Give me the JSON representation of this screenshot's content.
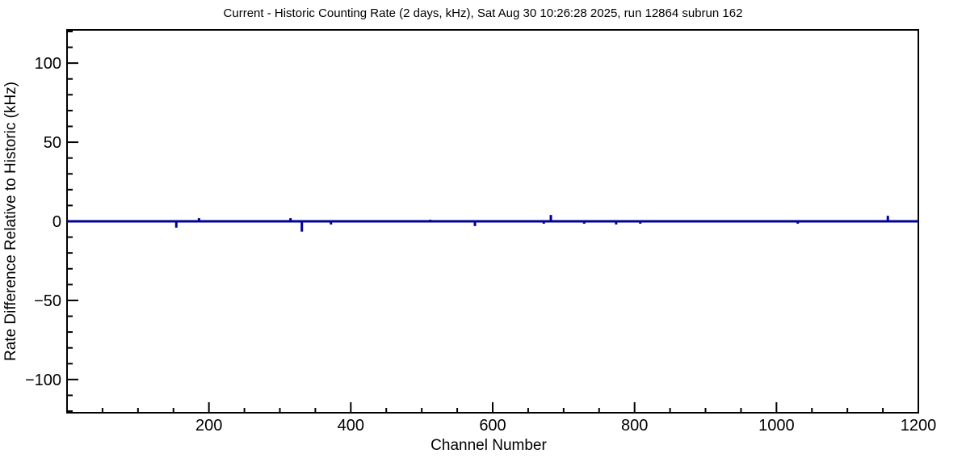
{
  "window": {
    "background_color": "#ffffff",
    "text_color": "#000000"
  },
  "chart_data": {
    "type": "line",
    "title": "Current - Historic Counting Rate (2 days, kHz), Sat Aug 30 10:26:28 2025, run 12864 subrun 162",
    "timestamp": "Sat Aug 30 10:26:28 2025",
    "run": "12864",
    "subrun": "162",
    "xlabel": "Channel Number",
    "ylabel": "Rate Difference Relative to Historic (kHz)",
    "xlim": [
      0,
      1200
    ],
    "ylim": [
      -121,
      121
    ],
    "grid": false,
    "legend_position": "none",
    "frame_color": "#000000",
    "line_color": "#000099",
    "x_major_step": 200,
    "x_minor_step": 50,
    "y_major_step": 50,
    "y_minor_step": 10,
    "x_major_ticks": [
      200,
      400,
      600,
      800,
      1000,
      1200
    ],
    "x_tick_labels": [
      "200",
      "400",
      "600",
      "800",
      "1000",
      "1200"
    ],
    "y_major_ticks": [
      -100,
      -50,
      0,
      50,
      100
    ],
    "y_tick_labels": [
      "−100",
      "−50",
      "0",
      "50",
      "100"
    ],
    "series": [
      {
        "name": "rate-difference-current-minus-historic",
        "baseline_value": 0,
        "spikes": [
          {
            "channel": 154,
            "value": -4
          },
          {
            "channel": 186,
            "value": 2
          },
          {
            "channel": 315,
            "value": 2
          },
          {
            "channel": 331,
            "value": -6.5
          },
          {
            "channel": 372,
            "value": -2
          },
          {
            "channel": 512,
            "value": 1
          },
          {
            "channel": 575,
            "value": -3
          },
          {
            "channel": 672,
            "value": -1.5
          },
          {
            "channel": 682,
            "value": 4
          },
          {
            "channel": 729,
            "value": -1.5
          },
          {
            "channel": 774,
            "value": -2
          },
          {
            "channel": 808,
            "value": -1.5
          },
          {
            "channel": 1030,
            "value": -1.5
          },
          {
            "channel": 1157,
            "value": 3.5
          }
        ]
      }
    ]
  }
}
